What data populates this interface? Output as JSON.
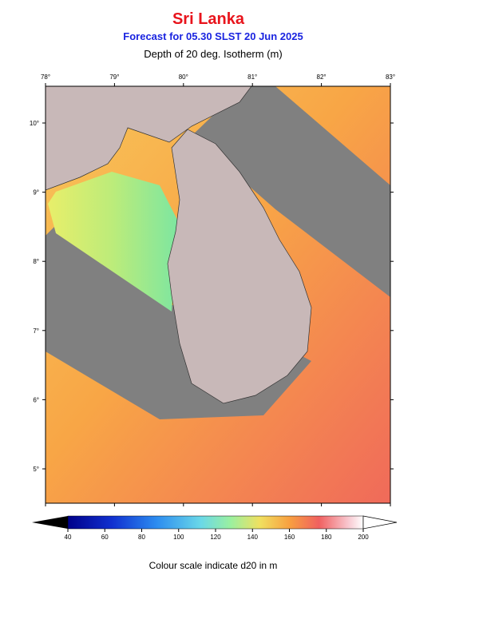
{
  "header": {
    "title": "Sri Lanka",
    "subtitle": "Forecast for  05.30 SLST 20 Jun 2025",
    "variable": "Depth of 20 deg. Isotherm (m)"
  },
  "map": {
    "lon_labels": [
      "78°",
      "79°",
      "80°",
      "81°",
      "82°",
      "83°"
    ],
    "lat_labels": [
      "10°",
      "9°",
      "8°",
      "7°",
      "6°",
      "5°"
    ]
  },
  "colorbar": {
    "ticks": [
      40,
      60,
      80,
      100,
      120,
      140,
      160,
      180,
      200
    ],
    "caption": "Colour scale indicate d20 in m"
  }
}
